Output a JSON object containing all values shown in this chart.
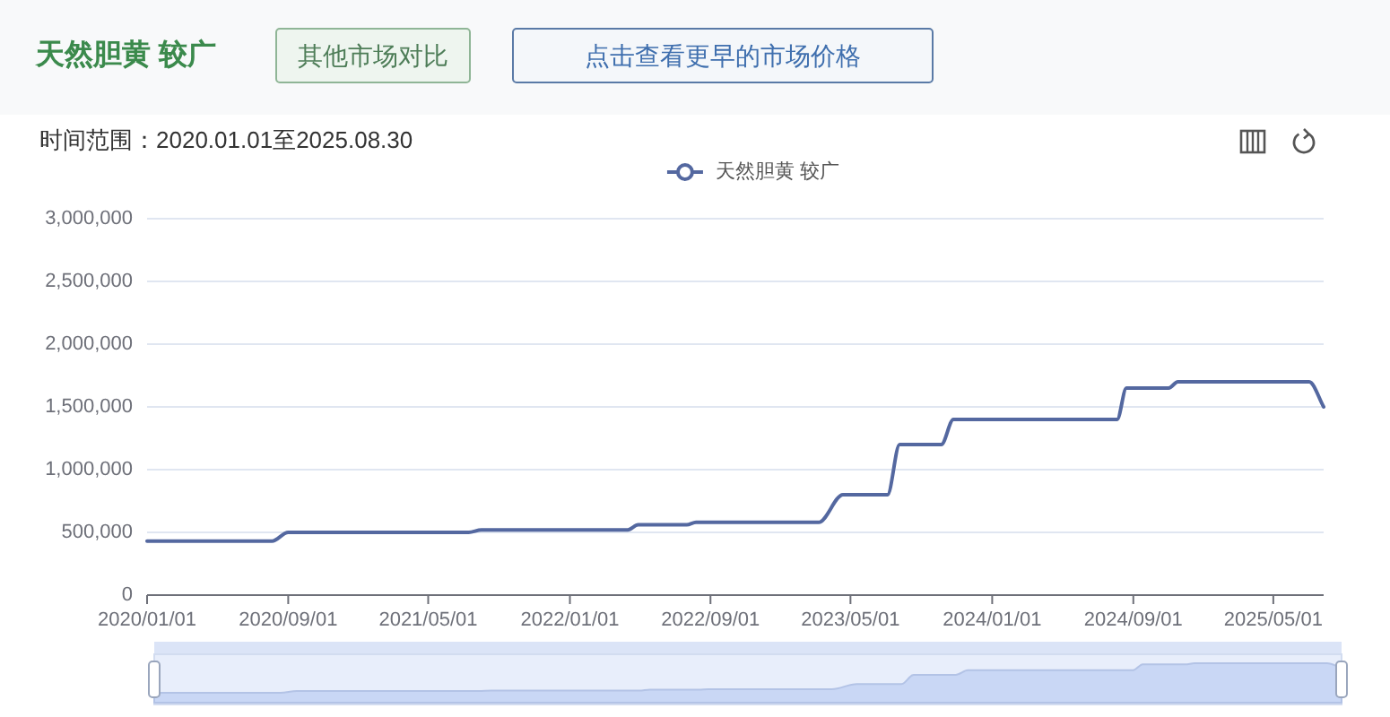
{
  "chart_data": {
    "type": "line",
    "title": "天然胆黄 较广",
    "subtitle": "时间范围：2020.01.01至2025.08.30",
    "annotations": [
      "其他市场对比",
      "点击查看更早的市场价格"
    ],
    "series": [
      {
        "name": "天然胆黄 较广",
        "color": "#5468a0",
        "x": [
          "2020-01-01",
          "2020-08-04",
          "2020-09-01",
          "2021-07-10",
          "2021-08-01",
          "2022-04-11",
          "2022-04-29",
          "2022-07-22",
          "2022-08-07",
          "2023-03-07",
          "2023-04-18",
          "2023-07-04",
          "2023-07-25",
          "2023-10-05",
          "2023-10-26",
          "2024-08-04",
          "2024-08-20",
          "2024-11-01",
          "2024-11-17",
          "2025-07-02",
          "2025-07-27"
        ],
        "values": [
          430000,
          430000,
          500000,
          500000,
          520000,
          520000,
          560000,
          560000,
          580000,
          580000,
          800000,
          800000,
          1200000,
          1200000,
          1400000,
          1400000,
          1650000,
          1650000,
          1700000,
          1700000,
          1500000
        ]
      }
    ],
    "xlim": [
      "2020-01-01",
      "2025-07-27"
    ],
    "xticks": [
      {
        "value": "2020-01-01",
        "label": "2020/01/01"
      },
      {
        "value": "2020-09-01",
        "label": "2020/09/01"
      },
      {
        "value": "2021-05-01",
        "label": "2021/05/01"
      },
      {
        "value": "2022-01-01",
        "label": "2022/01/01"
      },
      {
        "value": "2022-09-01",
        "label": "2022/09/01"
      },
      {
        "value": "2023-05-01",
        "label": "2023/05/01"
      },
      {
        "value": "2024-01-01",
        "label": "2024/01/01"
      },
      {
        "value": "2024-09-01",
        "label": "2024/09/01"
      },
      {
        "value": "2025-05-01",
        "label": "2025/05/01"
      }
    ],
    "ylim": [
      0,
      3000000
    ],
    "yticks": [
      0,
      {
        "value": 500000,
        "label": "500,000"
      },
      {
        "value": 1000000,
        "label": "1,000,000"
      },
      {
        "value": 1500000,
        "label": "1,500,000"
      },
      {
        "value": 2000000,
        "label": "2,000,000"
      },
      {
        "value": 2500000,
        "label": "2,500,000"
      },
      {
        "value": 3000000,
        "label": "3,000,000"
      }
    ],
    "grid": "y",
    "legend": "top",
    "line_style": "solid"
  }
}
